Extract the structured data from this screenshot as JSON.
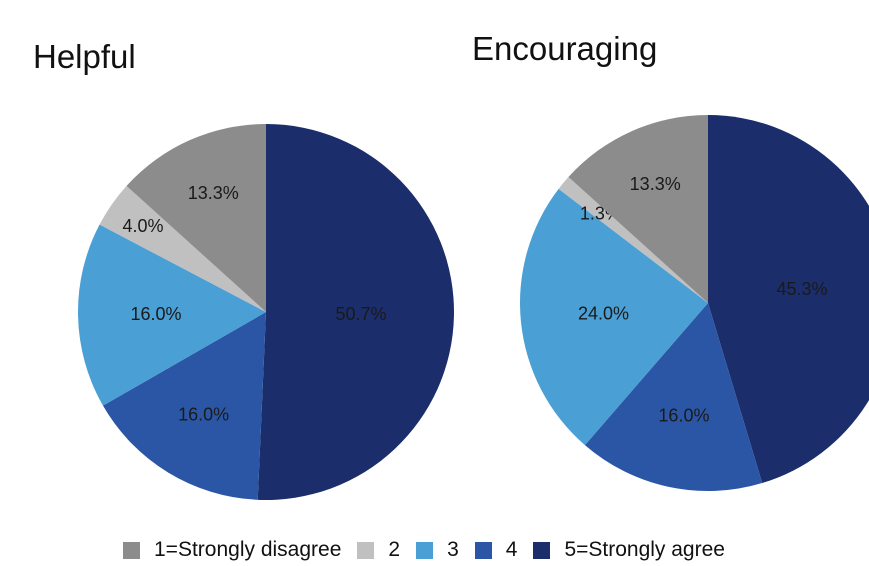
{
  "chart_data": [
    {
      "type": "pie",
      "title": "Helpful",
      "categories": [
        "1=Strongly disagree",
        "2",
        "3",
        "4",
        "5=Strongly agree"
      ],
      "values": [
        13.3,
        4.0,
        16.0,
        16.0,
        50.7
      ],
      "labels": [
        "13.3%",
        "4.0%",
        "16.0%",
        "16.0%",
        "50.7%"
      ]
    },
    {
      "type": "pie",
      "title": "Encouraging",
      "categories": [
        "1=Strongly disagree",
        "2",
        "3",
        "4",
        "5=Strongly agree"
      ],
      "values": [
        13.3,
        1.3,
        24.0,
        16.0,
        45.3
      ],
      "labels": [
        "13.3%",
        "1.3%",
        "24.0%",
        "16.0%",
        "45.3%"
      ]
    }
  ],
  "legend": {
    "placement": "bottom",
    "items": [
      {
        "label": "1=Strongly disagree",
        "color": "#8c8c8c"
      },
      {
        "label": "2",
        "color": "#c0c0c0"
      },
      {
        "label": "3",
        "color": "#4a9fd5"
      },
      {
        "label": "4",
        "color": "#2b56a6"
      },
      {
        "label": "5=Strongly agree",
        "color": "#1b2d6b"
      }
    ]
  }
}
